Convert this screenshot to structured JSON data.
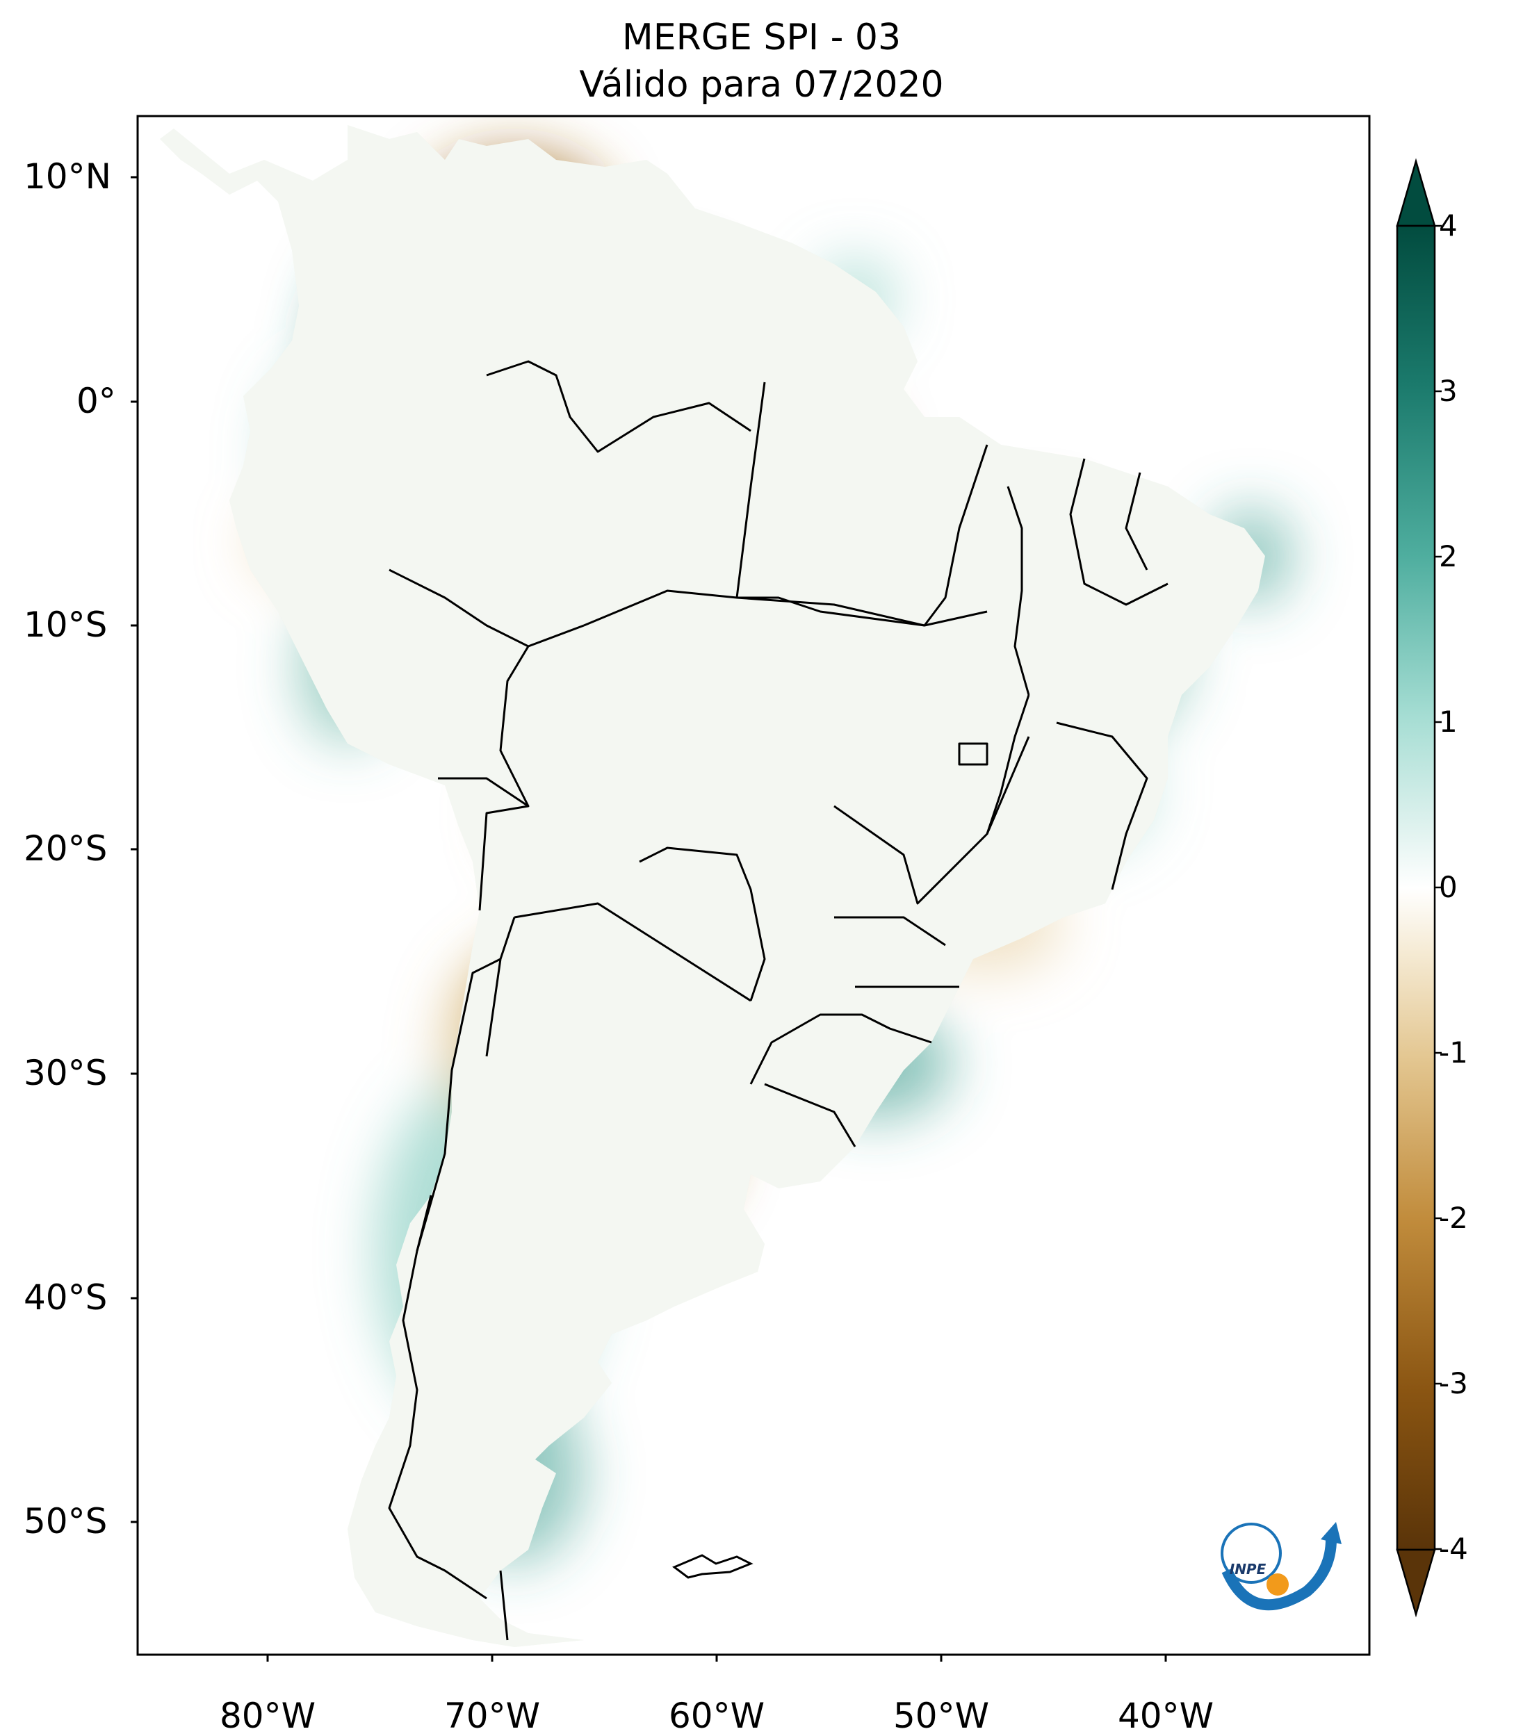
{
  "title": {
    "line1": "MERGE   SPI - 03",
    "line2": "Válido para 07/2020"
  },
  "lat_labels": [
    "10°N",
    "0°",
    "10°S",
    "20°S",
    "30°S",
    "40°S",
    "50°S"
  ],
  "lon_labels": [
    "80°W",
    "70°W",
    "60°W",
    "50°W",
    "40°W"
  ],
  "colorbar": {
    "labels": [
      "4",
      "3",
      "2",
      "1",
      "0",
      "-1",
      "-2",
      "-3",
      "-4"
    ],
    "min": -4,
    "max": 4,
    "colors": {
      "dry_extreme": "#5a3409",
      "dry_strong": "#9b6418",
      "dry_mid": "#c9a05a",
      "dry_light": "#ecdcb8",
      "neutral": "#ffffff",
      "wet_light": "#c8ebe4",
      "wet_mid": "#6fc3b5",
      "wet_strong": "#238a7c",
      "wet_extreme": "#024c3f"
    }
  },
  "logo": {
    "text": "INPE"
  }
}
